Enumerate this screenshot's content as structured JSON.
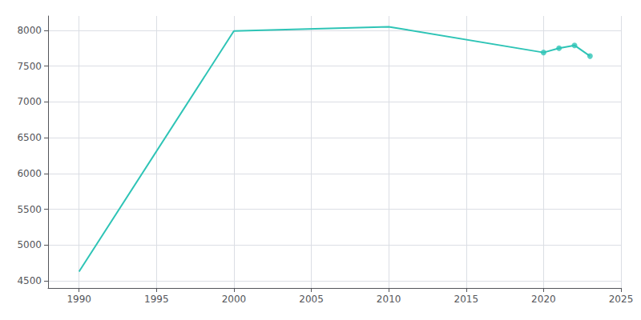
{
  "chart_data": {
    "type": "line",
    "series": [
      {
        "type": "line",
        "color": "#2ec4b6",
        "x": [
          1990,
          2000,
          2010,
          2020,
          2021,
          2022,
          2023
        ],
        "values": [
          4630,
          7990,
          8050,
          7690,
          7750,
          7790,
          7640
        ]
      },
      {
        "type": "scatter",
        "marker": "circle",
        "color": "#2ec4b6",
        "x": [
          2020,
          2021,
          2022,
          2023
        ],
        "values": [
          7690,
          7750,
          7790,
          7640
        ]
      }
    ],
    "xlim": [
      1988,
      2025
    ],
    "ylim": [
      4400,
      8200
    ],
    "xticks": [
      1990,
      1995,
      2000,
      2005,
      2010,
      2015,
      2020,
      2025
    ],
    "yticks": [
      4500,
      5000,
      5500,
      6000,
      6500,
      7000,
      7500,
      8000
    ],
    "grid": true
  }
}
